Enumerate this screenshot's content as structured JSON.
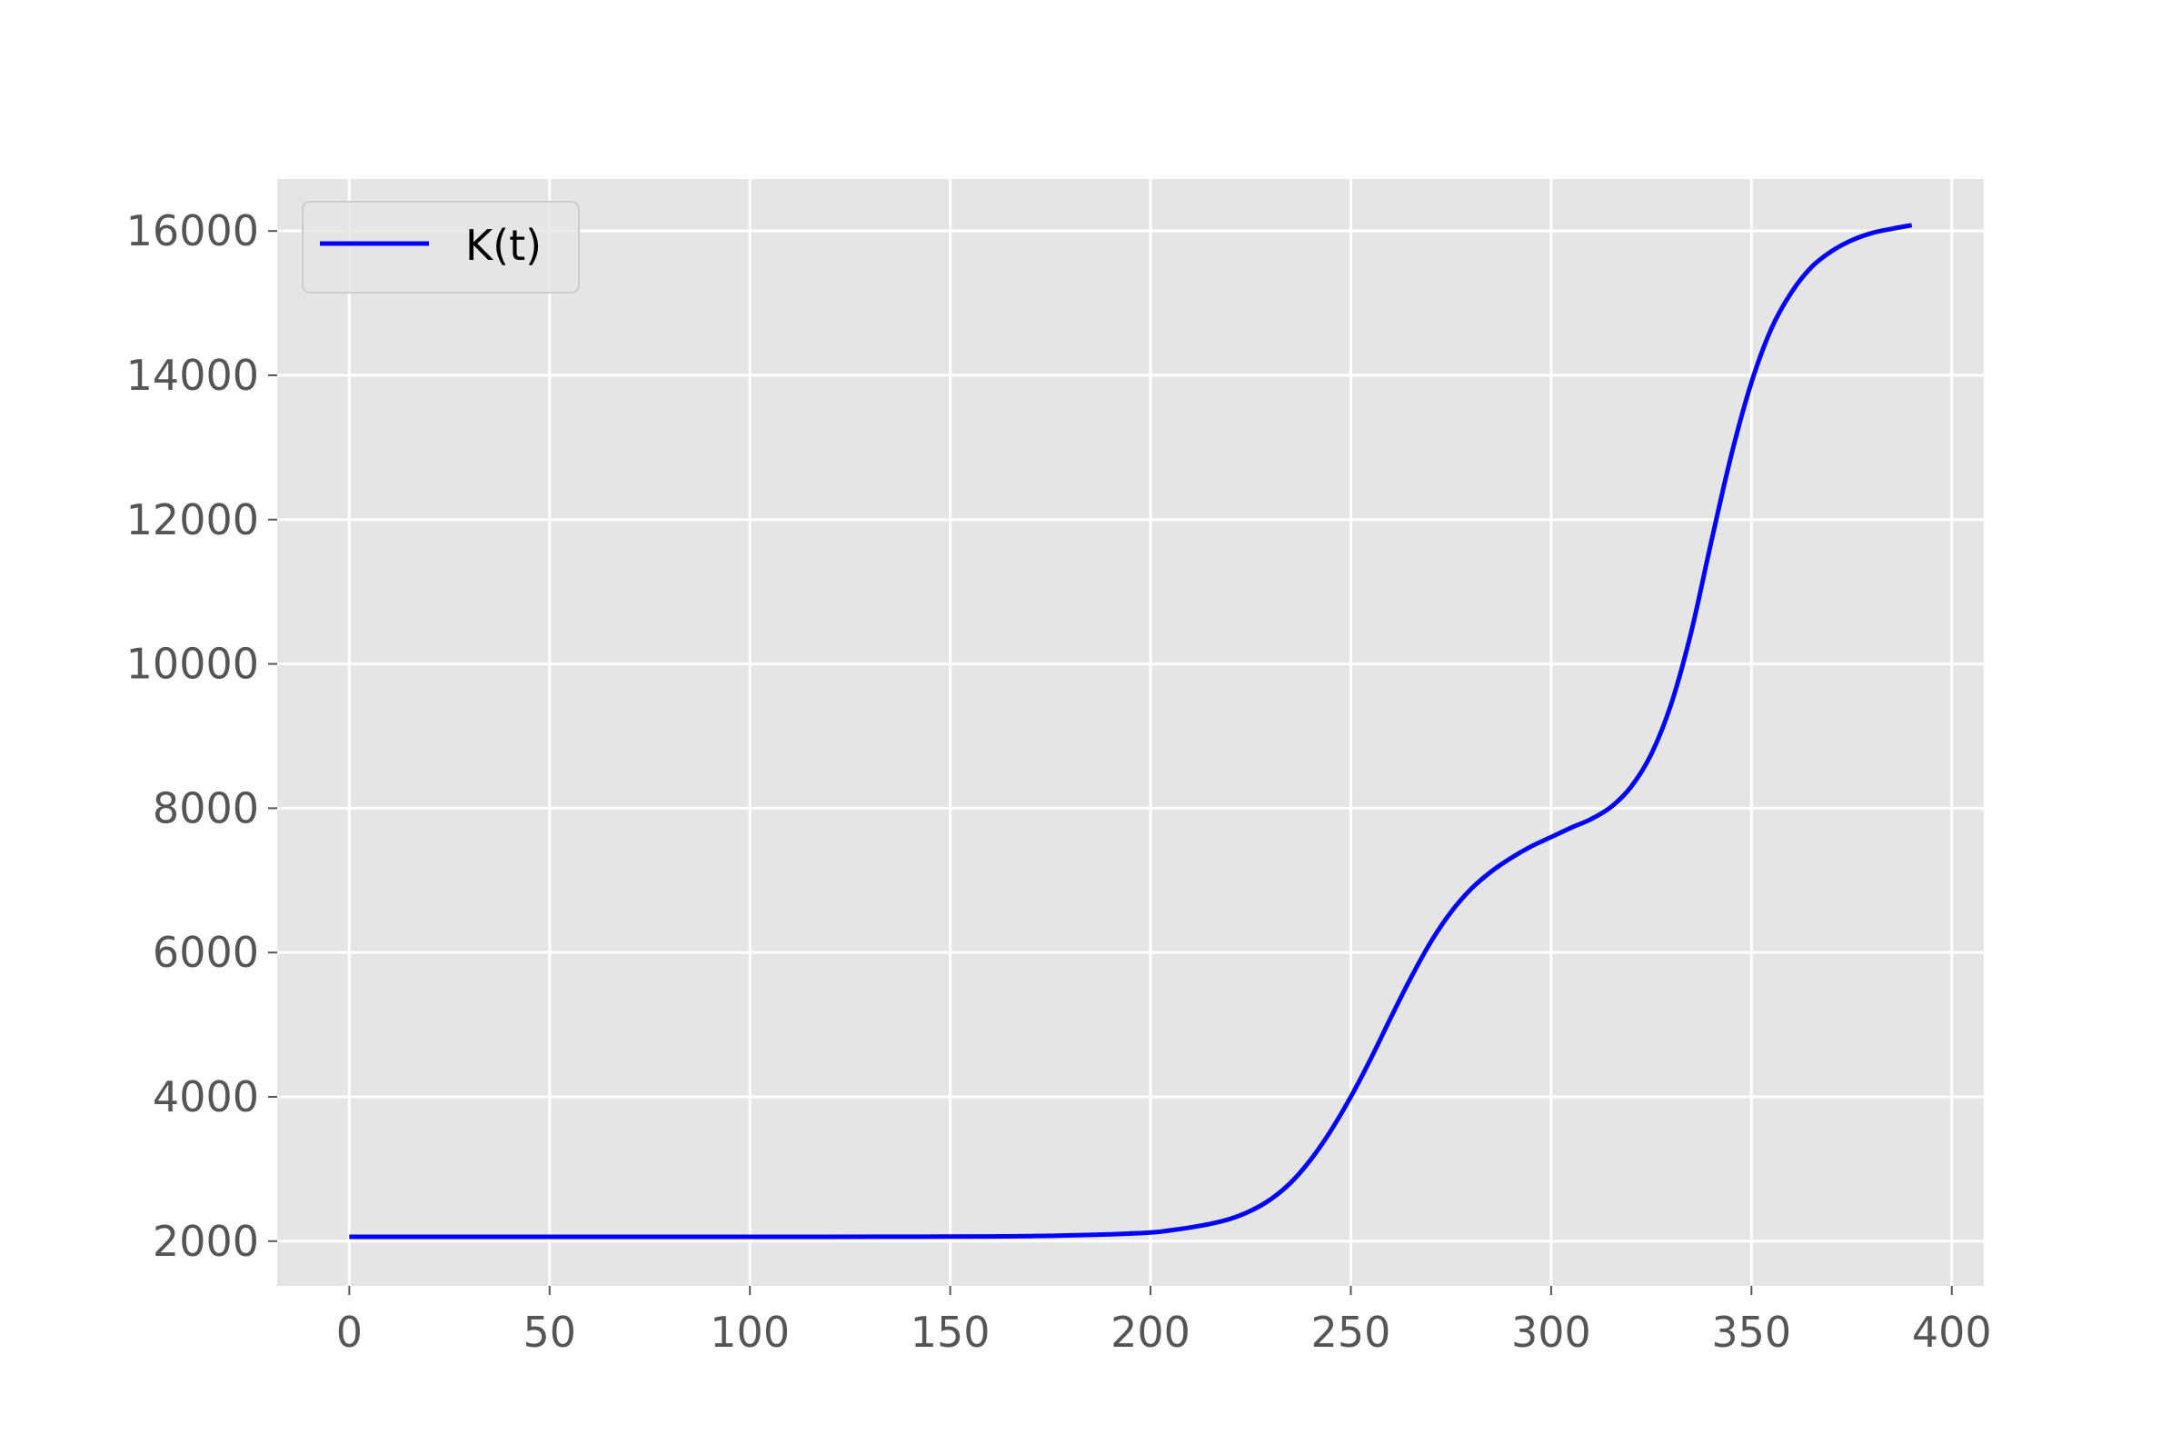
{
  "chart_data": {
    "type": "line",
    "title": "",
    "xlabel": "",
    "ylabel": "",
    "xlim": [
      -18,
      408
    ],
    "ylim": [
      1380,
      16720
    ],
    "xticks": [
      0,
      50,
      100,
      150,
      200,
      250,
      300,
      350,
      400
    ],
    "yticks": [
      2000,
      4000,
      6000,
      8000,
      10000,
      12000,
      14000,
      16000
    ],
    "grid": true,
    "legend_position": "top-left",
    "colors": {
      "plot_background": "#e5e5e5",
      "grid": "#ffffff",
      "tick_text": "#555555",
      "line": "#0000ff"
    },
    "series": [
      {
        "name": "K(t)",
        "color": "#0000ff",
        "x": [
          0,
          20,
          40,
          60,
          80,
          100,
          120,
          140,
          160,
          170,
          180,
          190,
          200,
          205,
          210,
          215,
          220,
          225,
          230,
          235,
          240,
          245,
          250,
          255,
          260,
          265,
          270,
          275,
          280,
          285,
          290,
          295,
          300,
          305,
          310,
          315,
          320,
          325,
          330,
          335,
          340,
          345,
          350,
          355,
          360,
          365,
          370,
          375,
          380,
          385,
          390
        ],
        "y": [
          2060,
          2060,
          2060,
          2060,
          2060,
          2060,
          2060,
          2062,
          2065,
          2070,
          2080,
          2095,
          2120,
          2150,
          2190,
          2240,
          2310,
          2420,
          2580,
          2810,
          3130,
          3530,
          4000,
          4530,
          5100,
          5650,
          6150,
          6560,
          6880,
          7120,
          7310,
          7470,
          7600,
          7730,
          7850,
          8020,
          8300,
          8750,
          9450,
          10450,
          11700,
          12900,
          13900,
          14650,
          15150,
          15500,
          15720,
          15870,
          15970,
          16030,
          16080
        ]
      }
    ]
  }
}
